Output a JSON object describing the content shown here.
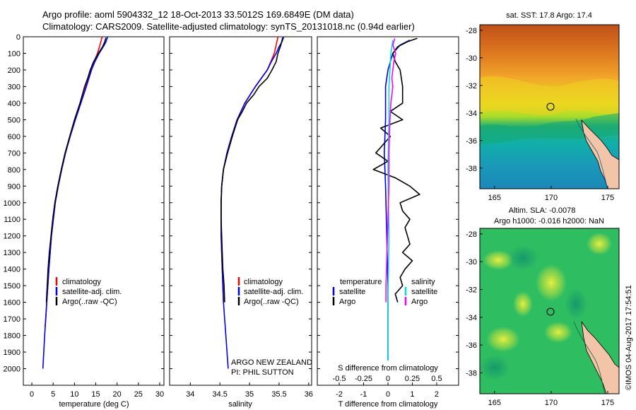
{
  "header": {
    "title_line1": "Argo profile: aoml 5904332_12 18-Oct-2013 33.5012S 169.6849E (DM data)",
    "title_line2": "Climatology: CARS2009. Satellite-adjusted climatology: synTS_20131018.nc (0.94d earlier)"
  },
  "colors": {
    "climatology": "#ff0000",
    "satellite": "#0000ff",
    "argo": "#000000",
    "salinity_satellite": "#00dddd",
    "salinity_argo": "#ff00ff"
  },
  "legend_profiles": [
    "climatology",
    "satellite-adj. clim.",
    "Argo(..raw -QC)"
  ],
  "legend_diff": {
    "temperature_header": "temperature",
    "salinity_header": "salinity",
    "satellite": "satellite",
    "argo": "Argo"
  },
  "annotation": {
    "line1": "ARGO NEW ZEALAND",
    "line2": "PI: PHIL SUTTON"
  },
  "map_sst": {
    "title": "sat. SST: 17.8 Argo: 17.4"
  },
  "map_sla": {
    "title_line1": "Altim. SLA: -0.0078",
    "title_line2": "Argo h1000: -0.016 h2000: NaN"
  },
  "credit": "©IMOS 04-Aug-2017 17:54:51",
  "chart_data": [
    {
      "type": "line",
      "xlabel": "temperature (deg C)",
      "ylabel": "",
      "xlim": [
        -2,
        31
      ],
      "ylim": [
        2100,
        0
      ],
      "xticks": [
        "0",
        "5",
        "10",
        "15",
        "20",
        "25",
        "30"
      ],
      "yticks": [
        "0",
        "100",
        "200",
        "300",
        "400",
        "500",
        "600",
        "700",
        "800",
        "900",
        "1000",
        "1100",
        "1200",
        "1300",
        "1400",
        "1500",
        "1600",
        "1700",
        "1800",
        "1900",
        "2000"
      ],
      "series": [
        {
          "name": "climatology",
          "y": [
            0,
            50,
            100,
            150,
            200,
            300,
            400,
            500,
            600,
            700,
            800,
            900,
            1000,
            1200,
            1400,
            1600,
            1750
          ],
          "values": [
            16.5,
            16.0,
            15.4,
            14.6,
            13.9,
            12.7,
            11.5,
            10.2,
            9.0,
            7.9,
            7.0,
            6.2,
            5.5,
            4.6,
            4.0,
            3.5,
            3.1
          ]
        },
        {
          "name": "satellite-adj. clim.",
          "y": [
            0,
            30,
            50,
            100,
            150,
            200,
            300,
            400,
            500,
            600,
            700,
            800,
            900,
            1000,
            1200,
            1400,
            1600,
            1800,
            2000
          ],
          "values": [
            17.8,
            17.4,
            17.0,
            15.8,
            14.8,
            14.0,
            12.8,
            11.5,
            10.2,
            9.0,
            7.9,
            7.0,
            6.2,
            5.5,
            4.6,
            4.0,
            3.5,
            3.0,
            2.6
          ]
        },
        {
          "name": "Argo(..raw -QC)",
          "y": [
            5,
            30,
            60,
            100,
            150,
            200,
            250,
            300,
            400,
            500,
            600,
            700,
            800,
            900,
            1000,
            1100,
            1200,
            1300,
            1400,
            1500,
            1600
          ],
          "values": [
            17.4,
            17.1,
            16.6,
            15.6,
            14.5,
            13.7,
            13.1,
            12.4,
            11.3,
            10.0,
            8.9,
            7.8,
            6.9,
            6.1,
            5.4,
            4.9,
            4.5,
            4.1,
            3.8,
            3.6,
            3.4
          ]
        }
      ]
    },
    {
      "type": "line",
      "xlabel": "salinity",
      "ylabel": "",
      "xlim": [
        33.65,
        36.05
      ],
      "ylim": [
        2100,
        0
      ],
      "xticks": [
        "34",
        "34.5",
        "35",
        "35.5",
        "36"
      ],
      "series": [
        {
          "name": "climatology",
          "y": [
            0,
            50,
            100,
            200,
            300,
            400,
            500,
            600,
            700,
            800,
            900,
            1000,
            1200,
            1400,
            1600
          ],
          "values": [
            35.48,
            35.45,
            35.42,
            35.3,
            35.1,
            34.92,
            34.79,
            34.7,
            34.62,
            34.56,
            34.53,
            34.52,
            34.52,
            34.54,
            34.56
          ]
        },
        {
          "name": "satellite-adj. clim.",
          "y": [
            0,
            30,
            60,
            100,
            150,
            200,
            300,
            400,
            500,
            600,
            700,
            800,
            900,
            1000,
            1200,
            1400,
            1600,
            1800,
            2000
          ],
          "values": [
            35.58,
            35.55,
            35.5,
            35.45,
            35.37,
            35.3,
            35.1,
            34.92,
            34.79,
            34.7,
            34.62,
            34.56,
            34.53,
            34.52,
            34.52,
            34.54,
            34.56,
            34.6,
            34.64
          ]
        },
        {
          "name": "Argo(..raw -QC)",
          "y": [
            5,
            50,
            100,
            150,
            200,
            250,
            300,
            350,
            400,
            450,
            500,
            600,
            700,
            800,
            900,
            1000,
            1100,
            1200,
            1300,
            1400,
            1500,
            1600
          ],
          "values": [
            35.56,
            35.53,
            35.48,
            35.45,
            35.38,
            35.3,
            35.16,
            35.07,
            34.95,
            34.88,
            34.8,
            34.71,
            34.63,
            34.56,
            34.53,
            34.52,
            34.52,
            34.53,
            34.54,
            34.55,
            34.57,
            34.58
          ]
        }
      ]
    },
    {
      "type": "line",
      "xlabel": "T difference from climatology",
      "xlabel_top": "S difference from climatology",
      "xlim": [
        -2.9,
        2.9
      ],
      "ylim": [
        2100,
        0
      ],
      "xticks": [
        "-2",
        "-1",
        "0",
        "1",
        "2"
      ],
      "xticks_top": [
        "-0.5",
        "-0.25",
        "0",
        "0.25",
        "0.5"
      ],
      "series": [
        {
          "name": "temperature satellite",
          "y": [
            20,
            50,
            100,
            150,
            200,
            300,
            400,
            500,
            700,
            900,
            1200,
            1500,
            1800,
            1950
          ],
          "values": [
            0.9,
            0.5,
            0.2,
            0.1,
            0.0,
            -0.1,
            -0.1,
            -0.1,
            -0.15,
            -0.1,
            -0.05,
            0.0,
            0.0,
            0.0
          ]
        },
        {
          "name": "temperature Argo",
          "y": [
            10,
            30,
            60,
            100,
            150,
            200,
            300,
            400,
            450,
            500,
            550,
            600,
            650,
            700,
            750,
            800,
            850,
            900,
            950,
            1000,
            1050,
            1100,
            1150,
            1200,
            1250,
            1300,
            1350,
            1400,
            1450,
            1500,
            1550,
            1600
          ],
          "values": [
            1.2,
            0.8,
            0.4,
            0.2,
            0.3,
            0.5,
            0.6,
            0.6,
            0.1,
            0.6,
            -0.3,
            0.1,
            -0.2,
            -0.5,
            0.0,
            -0.6,
            0.3,
            0.9,
            1.3,
            0.5,
            0.6,
            0.9,
            0.7,
            0.8,
            0.9,
            0.6,
            1.0,
            0.7,
            0.5,
            0.6,
            0.3,
            0.4
          ]
        },
        {
          "name": "salinity satellite",
          "y": [
            20,
            100,
            200,
            300,
            500,
            800,
            1200,
            1600,
            1950
          ],
          "values": [
            0.05,
            0.03,
            0.02,
            0.01,
            0.01,
            0.0,
            0.01,
            0.0,
            0.0
          ]
        },
        {
          "name": "salinity Argo",
          "y": [
            10,
            50,
            100,
            150,
            200,
            250,
            300,
            350,
            400,
            500,
            700,
            900,
            1100,
            1300,
            1500,
            1600
          ],
          "values": [
            0.07,
            0.05,
            0.08,
            0.06,
            0.05,
            0.04,
            0.05,
            0.04,
            0.03,
            0.02,
            0.01,
            0.01,
            0.0,
            -0.01,
            -0.02,
            -0.02
          ]
        }
      ]
    },
    {
      "type": "heatmap",
      "title": "sat. SST: 17.8 Argo: 17.4",
      "xticks": [
        "165",
        "170",
        "175"
      ],
      "yticks": [
        "-28",
        "-30",
        "-32",
        "-34",
        "-36",
        "-38"
      ],
      "xlim": [
        163.7,
        176.0
      ],
      "ylim": [
        -39.5,
        -27.6
      ],
      "argo_position": [
        169.68,
        -33.5
      ]
    },
    {
      "type": "heatmap",
      "title": "Altim. SLA: -0.0078",
      "xticks": [
        "165",
        "170",
        "175"
      ],
      "yticks": [
        "-28",
        "-30",
        "-32",
        "-34",
        "-36",
        "-38"
      ],
      "xlim": [
        163.7,
        176.0
      ],
      "ylim": [
        -39.5,
        -27.6
      ],
      "argo_position": [
        169.68,
        -33.5
      ]
    }
  ]
}
